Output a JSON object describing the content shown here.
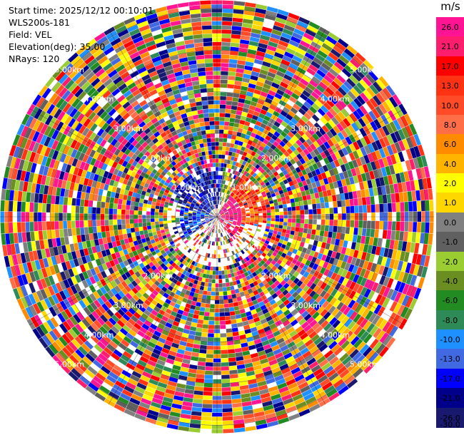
{
  "info": {
    "start_time": "Start time: 2025/12/12 00:10:01",
    "instrument": "WLS200s-181",
    "field": "Field: VEL",
    "elevation": "Elevation(deg): 35.00",
    "nrays": "NRays: 120"
  },
  "colorbar": {
    "unit": "m/s",
    "ticks": [
      "26.0",
      "21.0",
      "17.0",
      "13.0",
      "10.0",
      "8.0",
      "6.0",
      "4.0",
      "2.0",
      "1.0",
      "0.0",
      "-1.0",
      "-2.0",
      "-4.0",
      "-6.0",
      "-8.0",
      "-10.0",
      "-13.0",
      "-17.0",
      "-21.0",
      "-26.0",
      "-30.0"
    ],
    "colors": [
      "#ff1493",
      "#ff1e6e",
      "#ff0000",
      "#ff3214",
      "#ff4b28",
      "#ff6e46",
      "#ff8c00",
      "#ffb400",
      "#ffff00",
      "#ffd700",
      "#808080",
      "#606060",
      "#9acd32",
      "#6b8e23",
      "#228b22",
      "#2e8b57",
      "#1e90ff",
      "#4169e1",
      "#0000ff",
      "#00008b",
      "#191970"
    ]
  },
  "chart_data": {
    "type": "heatmap",
    "title": "",
    "projection": "polar PPI",
    "n_rays": 120,
    "range_rings_km": [
      1.0,
      2.0,
      3.0,
      4.0,
      5.0
    ],
    "ring_labels": [
      "1.00km",
      "2.00km",
      "3.00km",
      "4.00km",
      "5.00km"
    ],
    "ring_label_azimuths_deg": [
      45,
      135,
      225,
      315
    ],
    "max_range_km": 5.2,
    "colorbar_range": [
      -30.0,
      26.0
    ],
    "field": "VEL",
    "description": "Radial velocity, strongly noise-dominated beyond ~1 km; coherent receding (red/pink) region to the east/northeast and approaching (blue) region to the north-west/west near the center."
  }
}
